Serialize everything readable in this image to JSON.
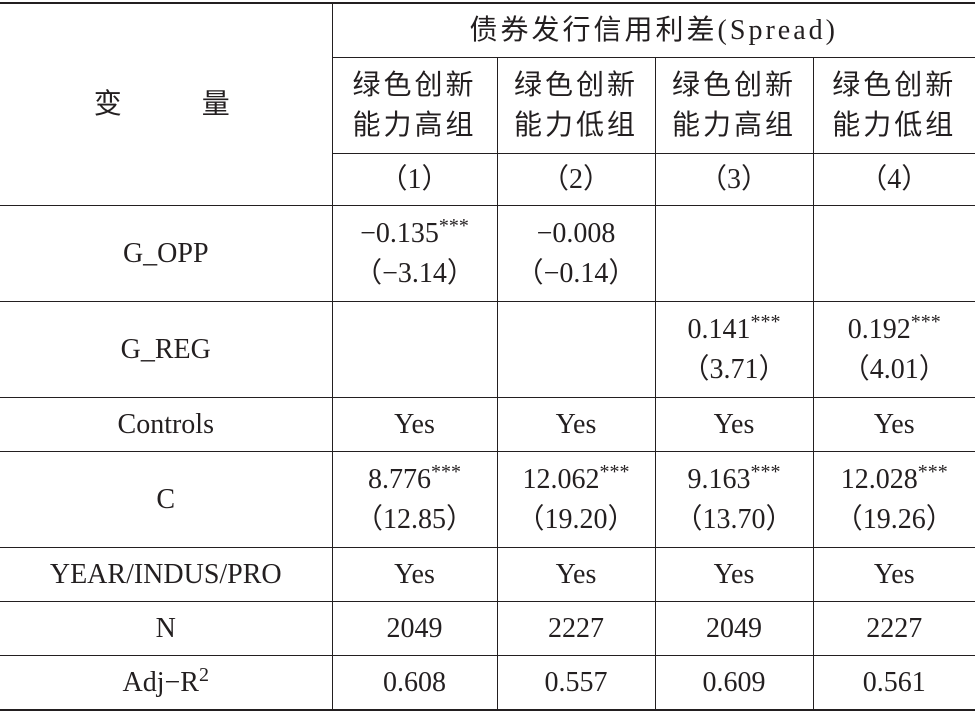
{
  "table": {
    "stub_header": "变　　量",
    "group_header": "债券发行信用利差(Spread)",
    "columns": [
      [
        "绿色创新",
        "能力高组"
      ],
      [
        "绿色创新",
        "能力低组"
      ],
      [
        "绿色创新",
        "能力高组"
      ],
      [
        "绿色创新",
        "能力低组"
      ]
    ],
    "column_numbers": [
      "（1）",
      "（2）",
      "（3）",
      "（4）"
    ],
    "rows": [
      {
        "label": "G_OPP",
        "cells": [
          {
            "coef": "−0.135",
            "stars": "***",
            "t": "（−3.14）"
          },
          {
            "coef": "−0.008",
            "t": "（−0.14）"
          },
          null,
          null
        ]
      },
      {
        "label": "G_REG",
        "cells": [
          null,
          null,
          {
            "coef": "0.141",
            "stars": "***",
            "t": "（3.71）"
          },
          {
            "coef": "0.192",
            "stars": "***",
            "t": "（4.01）"
          }
        ]
      },
      {
        "label": "Controls",
        "cells": [
          {
            "coef": "Yes"
          },
          {
            "coef": "Yes"
          },
          {
            "coef": "Yes"
          },
          {
            "coef": "Yes"
          }
        ]
      },
      {
        "label": "C",
        "cells": [
          {
            "coef": "8.776",
            "stars": "***",
            "t": "（12.85）"
          },
          {
            "coef": "12.062",
            "stars": "***",
            "t": "（19.20）"
          },
          {
            "coef": "9.163",
            "stars": "***",
            "t": "（13.70）"
          },
          {
            "coef": "12.028",
            "stars": "***",
            "t": "（19.26）"
          }
        ]
      },
      {
        "label": "YEAR/INDUS/PRO",
        "cells": [
          {
            "coef": "Yes"
          },
          {
            "coef": "Yes"
          },
          {
            "coef": "Yes"
          },
          {
            "coef": "Yes"
          }
        ]
      },
      {
        "label": "N",
        "cells": [
          {
            "coef": "2049"
          },
          {
            "coef": "2227"
          },
          {
            "coef": "2049"
          },
          {
            "coef": "2227"
          }
        ]
      },
      {
        "label": "Adj−R",
        "label_sup": "2",
        "cells": [
          {
            "coef": "0.608"
          },
          {
            "coef": "0.557"
          },
          {
            "coef": "0.609"
          },
          {
            "coef": "0.561"
          }
        ]
      }
    ]
  }
}
